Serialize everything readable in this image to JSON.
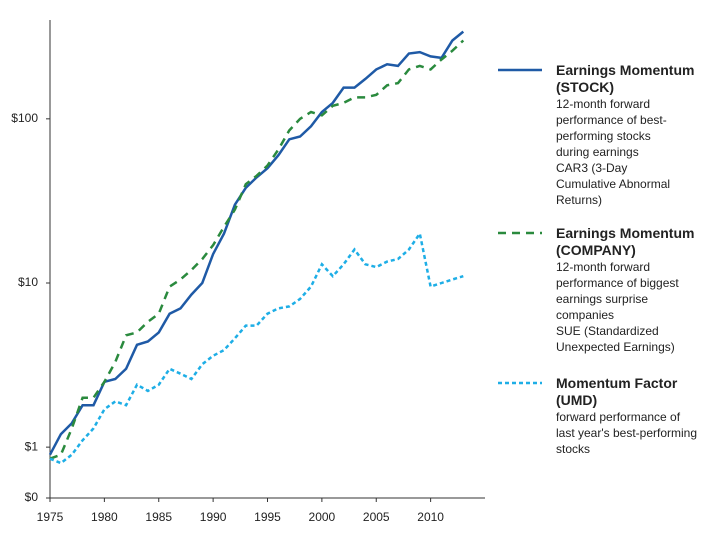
{
  "chart_data": {
    "type": "line",
    "log_scale": true,
    "x": [
      1975,
      1976,
      1977,
      1978,
      1979,
      1980,
      1981,
      1982,
      1983,
      1984,
      1985,
      1986,
      1987,
      1988,
      1989,
      1990,
      1991,
      1992,
      1993,
      1994,
      1995,
      1996,
      1997,
      1998,
      1999,
      2000,
      2001,
      2002,
      2003,
      2004,
      2005,
      2006,
      2007,
      2008,
      2009,
      2010,
      2011,
      2012,
      2013
    ],
    "xlim": [
      1975,
      2015
    ],
    "xticks": [
      1975,
      1980,
      1985,
      1990,
      1995,
      2000,
      2005,
      2010
    ],
    "ylim": [
      0.49,
      400
    ],
    "yticks": [
      {
        "value": 0.49,
        "label": "$0"
      },
      {
        "value": 1,
        "label": "$1"
      },
      {
        "value": 10,
        "label": "$10"
      },
      {
        "value": 100,
        "label": "$100"
      }
    ],
    "series": [
      {
        "name": "Earnings Momentum (STOCK)",
        "color": "#1f5aa6",
        "line_style": "solid",
        "description": [
          "12-month forward",
          "performance of best-",
          "performing stocks",
          "during earnings",
          "CAR3 (3-Day",
          "Cumulative Abnormal",
          "Returns)"
        ],
        "values": [
          0.9,
          1.2,
          1.4,
          1.8,
          1.8,
          2.5,
          2.6,
          3.0,
          4.2,
          4.4,
          5.0,
          6.5,
          7.0,
          8.5,
          10,
          15,
          20,
          30,
          38,
          44,
          50,
          60,
          75,
          78,
          90,
          110,
          125,
          155,
          155,
          175,
          200,
          215,
          210,
          250,
          255,
          240,
          235,
          300,
          340
        ]
      },
      {
        "name": "Earnings Momentum (COMPANY)",
        "color": "#2a8a3e",
        "line_style": "dashed",
        "description": [
          "12-month forward",
          "performance of biggest",
          "earnings surprise",
          "companies",
          "SUE (Standardized",
          "Unexpected Earnings)"
        ],
        "values": [
          0.85,
          0.9,
          1.3,
          2.0,
          2.0,
          2.5,
          3.3,
          4.8,
          5.0,
          5.8,
          6.5,
          9.5,
          10.5,
          12,
          14,
          17,
          22,
          28,
          40,
          45,
          52,
          65,
          85,
          100,
          110,
          105,
          120,
          125,
          135,
          135,
          140,
          160,
          165,
          200,
          210,
          200,
          230,
          260,
          300
        ]
      },
      {
        "name": "Momentum Factor (UMD)",
        "color": "#1eaee6",
        "line_style": "dotted",
        "description": [
          "forward performance of",
          "last year's best-performing",
          "stocks"
        ],
        "values": [
          0.85,
          0.8,
          0.9,
          1.1,
          1.3,
          1.7,
          1.9,
          1.8,
          2.4,
          2.2,
          2.4,
          3.0,
          2.8,
          2.6,
          3.2,
          3.6,
          3.9,
          4.6,
          5.5,
          5.5,
          6.5,
          7,
          7.2,
          8.0,
          9.5,
          13,
          11,
          13,
          16,
          13,
          12.5,
          13.5,
          14,
          16,
          20,
          9.5,
          10,
          10.5,
          11
        ]
      }
    ]
  }
}
